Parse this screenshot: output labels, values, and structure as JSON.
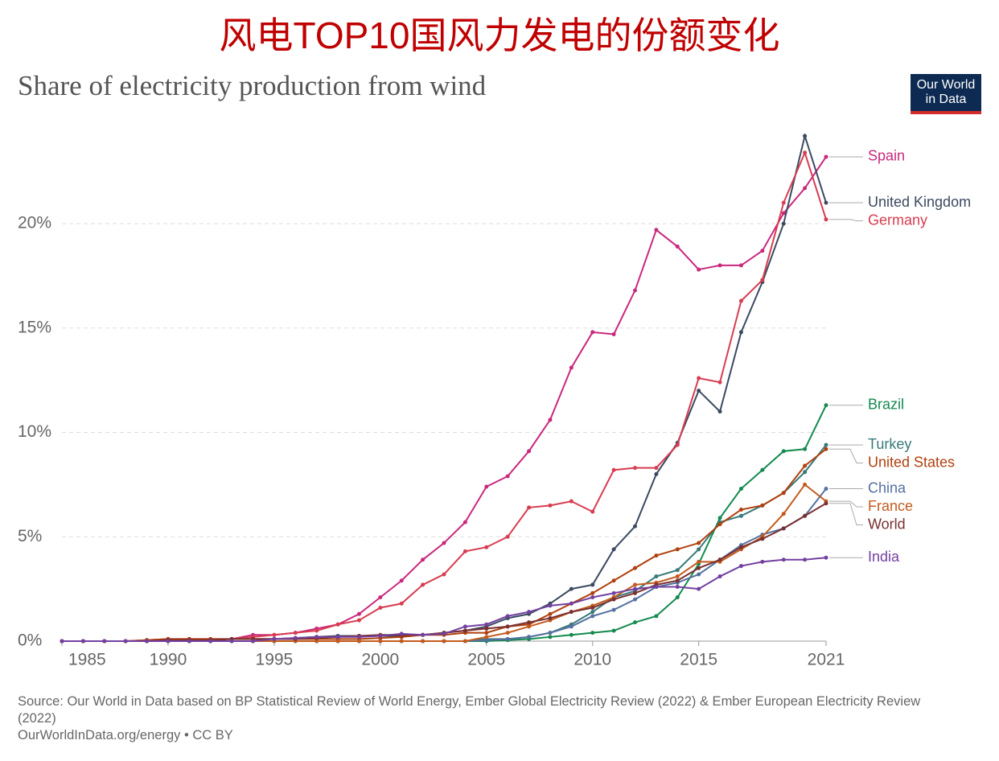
{
  "chart_data": {
    "type": "line",
    "title": "风电TOP10国风力发电的份额变化",
    "subtitle": "Share of electricity production from wind",
    "logo": "Our World in Data",
    "source": "Source: Our World in Data based on BP Statistical Review of World Energy, Ember Global Electricity Review (2022) & Ember European Electricity Review (2022)",
    "footer": "OurWorldInData.org/energy • CC BY",
    "x": [
      1985,
      1986,
      1987,
      1988,
      1989,
      1990,
      1991,
      1992,
      1993,
      1994,
      1995,
      1996,
      1997,
      1998,
      1999,
      2000,
      2001,
      2002,
      2003,
      2004,
      2005,
      2006,
      2007,
      2008,
      2009,
      2010,
      2011,
      2012,
      2013,
      2014,
      2015,
      2016,
      2017,
      2018,
      2019,
      2020,
      2021
    ],
    "xlim": [
      1985,
      2021
    ],
    "xticks": [
      1985,
      1990,
      1995,
      2000,
      2005,
      2010,
      2015,
      2021
    ],
    "ylim": [
      0,
      24.2
    ],
    "yticks": [
      {
        "value": 0,
        "label": "0%"
      },
      {
        "value": 5,
        "label": "5%"
      },
      {
        "value": 10,
        "label": "10%"
      },
      {
        "value": 15,
        "label": "15%"
      },
      {
        "value": 20,
        "label": "20%"
      }
    ],
    "grid": true,
    "series": [
      {
        "name": "Spain",
        "color": "#c9287d",
        "values": [
          0,
          0,
          0,
          0,
          0.05,
          0.1,
          0.1,
          0.1,
          0.1,
          0.3,
          0.3,
          0.4,
          0.6,
          0.8,
          1.3,
          2.1,
          2.9,
          3.9,
          4.7,
          5.7,
          7.4,
          7.9,
          9.1,
          10.6,
          13.1,
          14.8,
          14.7,
          16.8,
          19.7,
          18.9,
          17.8,
          18.0,
          18.0,
          18.7,
          20.5,
          21.7,
          23.2
        ]
      },
      {
        "name": "United Kingdom",
        "color": "#3b4a60",
        "values": [
          0,
          0,
          0,
          0,
          0,
          0,
          0,
          0.05,
          0.1,
          0.1,
          0.1,
          0.15,
          0.2,
          0.25,
          0.25,
          0.25,
          0.25,
          0.3,
          0.4,
          0.5,
          0.7,
          1.1,
          1.3,
          1.8,
          2.5,
          2.7,
          4.4,
          5.5,
          8.0,
          9.5,
          12.0,
          11.0,
          14.8,
          17.2,
          20.0,
          24.2,
          21.0
        ]
      },
      {
        "name": "Germany",
        "color": "#d73c50",
        "values": [
          0,
          0,
          0,
          0,
          0,
          0,
          0.05,
          0.05,
          0.1,
          0.2,
          0.3,
          0.4,
          0.5,
          0.8,
          1.0,
          1.6,
          1.8,
          2.7,
          3.2,
          4.3,
          4.5,
          5.0,
          6.4,
          6.5,
          6.7,
          6.2,
          8.2,
          8.3,
          8.3,
          9.4,
          12.6,
          12.4,
          16.3,
          17.3,
          21.0,
          23.4,
          20.2
        ]
      },
      {
        "name": "Brazil",
        "color": "#138a4e",
        "values": [
          0,
          0,
          0,
          0,
          0,
          0,
          0,
          0,
          0,
          0,
          0,
          0,
          0,
          0,
          0,
          0,
          0,
          0,
          0,
          0,
          0,
          0.05,
          0.1,
          0.2,
          0.3,
          0.4,
          0.5,
          0.9,
          1.2,
          2.1,
          3.7,
          5.9,
          7.3,
          8.2,
          9.1,
          9.2,
          11.3
        ]
      },
      {
        "name": "Turkey",
        "color": "#38797a",
        "values": [
          0,
          0,
          0,
          0,
          0,
          0,
          0,
          0,
          0,
          0,
          0,
          0,
          0,
          0,
          0,
          0,
          0,
          0,
          0,
          0,
          0.1,
          0.1,
          0.2,
          0.4,
          0.8,
          1.4,
          2.1,
          2.4,
          3.1,
          3.4,
          4.4,
          5.7,
          6.0,
          6.5,
          7.1,
          8.1,
          9.4
        ]
      },
      {
        "name": "United States",
        "color": "#b0400e",
        "values": [
          0,
          0,
          0,
          0,
          0.05,
          0.1,
          0.1,
          0.1,
          0.1,
          0.1,
          0.1,
          0.1,
          0.1,
          0.1,
          0.1,
          0.15,
          0.2,
          0.3,
          0.3,
          0.4,
          0.4,
          0.7,
          0.8,
          1.3,
          1.8,
          2.3,
          2.9,
          3.5,
          4.1,
          4.4,
          4.7,
          5.6,
          6.3,
          6.5,
          7.1,
          8.4,
          9.2
        ]
      },
      {
        "name": "China",
        "color": "#5570a0",
        "values": [
          0,
          0,
          0,
          0,
          0,
          0,
          0,
          0,
          0,
          0,
          0,
          0,
          0,
          0,
          0,
          0,
          0,
          0,
          0,
          0,
          0.05,
          0.1,
          0.2,
          0.4,
          0.7,
          1.2,
          1.5,
          2.0,
          2.6,
          2.8,
          3.2,
          3.9,
          4.6,
          5.1,
          5.4,
          6.0,
          7.3
        ]
      },
      {
        "name": "France",
        "color": "#c35b1e",
        "values": [
          0,
          0,
          0,
          0,
          0,
          0,
          0,
          0,
          0,
          0,
          0,
          0,
          0,
          0,
          0,
          0,
          0,
          0,
          0,
          0,
          0.2,
          0.4,
          0.7,
          1.0,
          1.4,
          1.7,
          2.1,
          2.7,
          2.8,
          3.1,
          3.8,
          3.8,
          4.4,
          5.0,
          6.1,
          7.5,
          6.7
        ]
      },
      {
        "name": "World",
        "color": "#7a3030",
        "values": [
          0,
          0,
          0,
          0,
          0,
          0.05,
          0.05,
          0.05,
          0.1,
          0.1,
          0.1,
          0.1,
          0.15,
          0.2,
          0.25,
          0.3,
          0.3,
          0.3,
          0.4,
          0.5,
          0.6,
          0.7,
          0.9,
          1.1,
          1.4,
          1.6,
          2.0,
          2.3,
          2.7,
          2.9,
          3.5,
          3.9,
          4.5,
          4.9,
          5.4,
          6.0,
          6.6
        ]
      },
      {
        "name": "India",
        "color": "#7340a0",
        "values": [
          0,
          0,
          0,
          0,
          0,
          0,
          0,
          0,
          0,
          0,
          0.1,
          0.15,
          0.2,
          0.2,
          0.2,
          0.25,
          0.35,
          0.3,
          0.35,
          0.7,
          0.8,
          1.2,
          1.4,
          1.7,
          1.8,
          2.1,
          2.3,
          2.5,
          2.6,
          2.6,
          2.5,
          3.1,
          3.6,
          3.8,
          3.9,
          3.9,
          4.0
        ]
      }
    ]
  }
}
